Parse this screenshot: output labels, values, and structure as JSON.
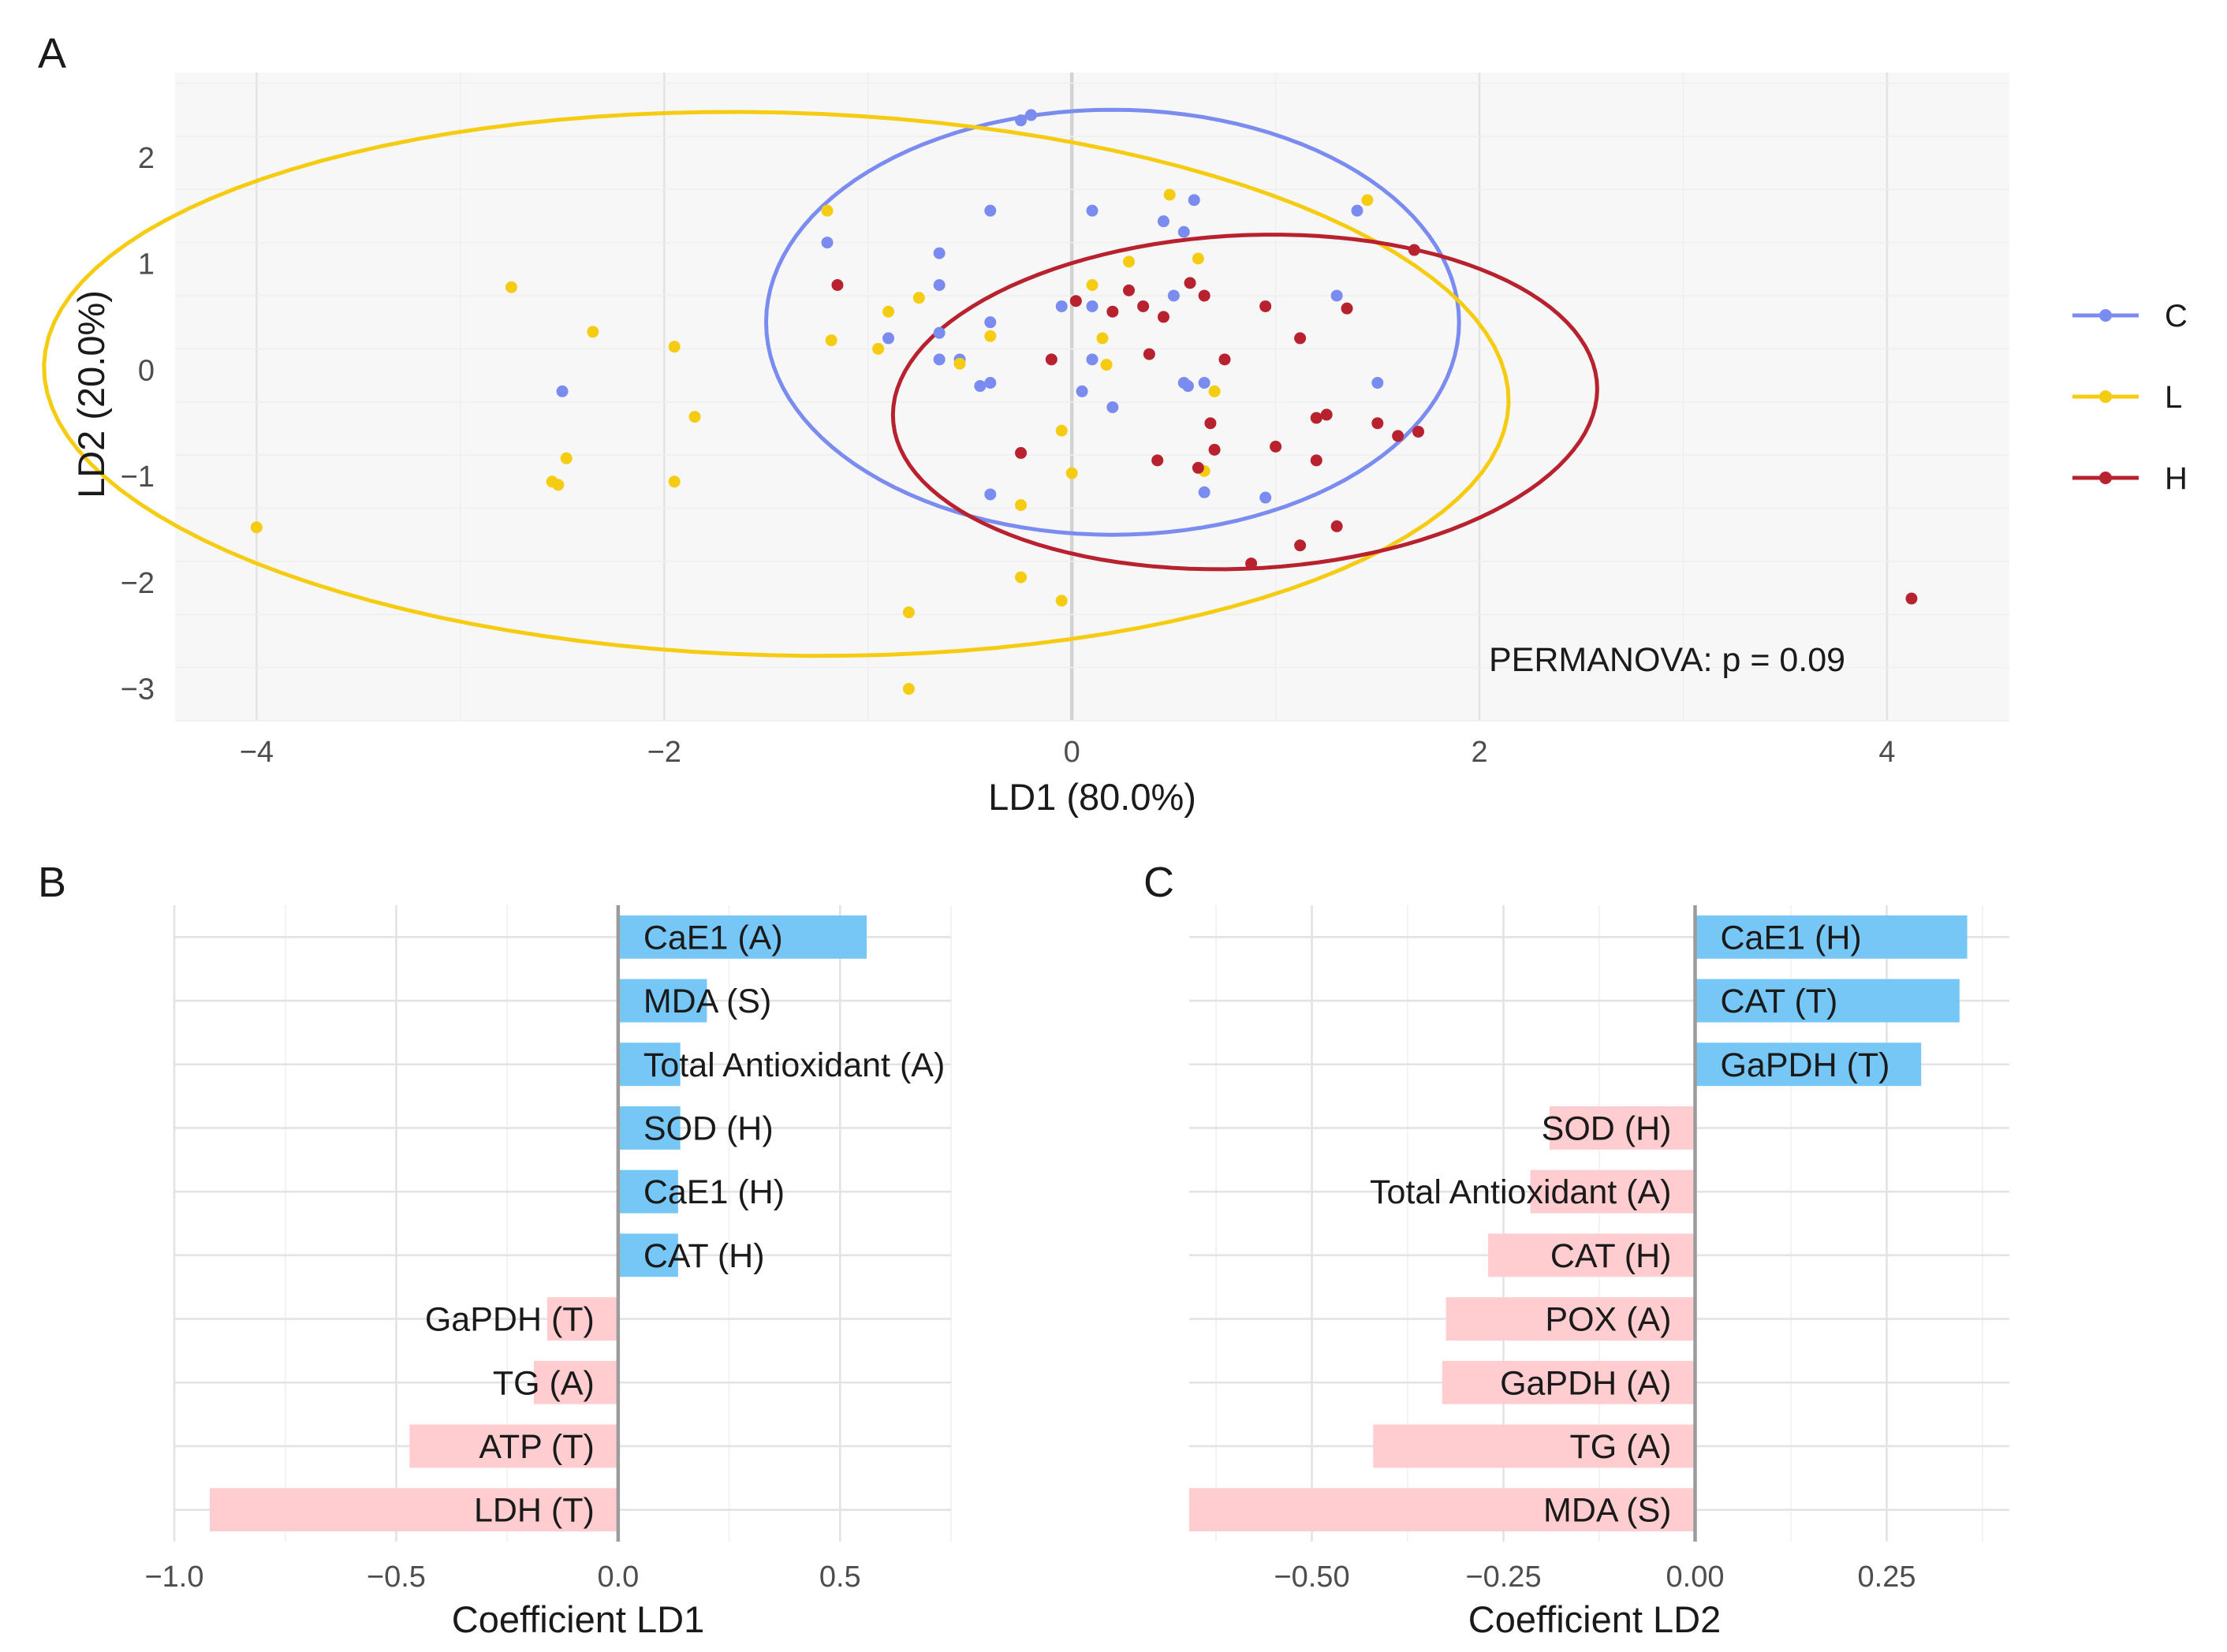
{
  "chart_data": [
    {
      "panel": "A",
      "type": "scatter",
      "xlabel": "LD1 (80.0%)",
      "ylabel": "LD2 (20.0%)",
      "xlim": [
        -4.4,
        4.6
      ],
      "ylim": [
        -3.3,
        2.8
      ],
      "xticks": [
        -4,
        -2,
        0,
        2,
        4
      ],
      "yticks": [
        -3,
        -2,
        -1,
        0,
        1,
        2
      ],
      "xtick_labels": [
        "−4",
        "−2",
        "0",
        "2",
        "4"
      ],
      "ytick_labels": [
        "−3",
        "−2",
        "−1",
        "0",
        "1",
        "2"
      ],
      "grid": true,
      "legend_position": "right",
      "annotation": "PERMANOVA: p = 0.09",
      "series": [
        {
          "name": "C",
          "color": "#7b8cf0",
          "ellipse": {
            "cx": 0.2,
            "cy": 0.45,
            "rx": 1.7,
            "ry": 2.0,
            "angle": 0
          },
          "points": [
            [
              -0.25,
              2.35
            ],
            [
              -0.2,
              2.4
            ],
            [
              0.1,
              1.5
            ],
            [
              0.45,
              1.4
            ],
            [
              0.55,
              1.3
            ],
            [
              0.6,
              1.6
            ],
            [
              -0.4,
              1.5
            ],
            [
              -1.2,
              1.2
            ],
            [
              -0.65,
              1.1
            ],
            [
              -0.65,
              0.8
            ],
            [
              -0.65,
              0.35
            ],
            [
              -0.65,
              0.1
            ],
            [
              -0.55,
              0.1
            ],
            [
              -0.45,
              -0.15
            ],
            [
              -0.4,
              -0.12
            ],
            [
              -0.4,
              0.45
            ],
            [
              -0.9,
              0.3
            ],
            [
              -0.05,
              0.6
            ],
            [
              0.1,
              0.6
            ],
            [
              0.1,
              0.1
            ],
            [
              0.05,
              -0.2
            ],
            [
              0.2,
              -0.35
            ],
            [
              0.5,
              0.7
            ],
            [
              0.55,
              -0.12
            ],
            [
              0.57,
              -0.15
            ],
            [
              0.65,
              -0.12
            ],
            [
              1.3,
              0.7
            ],
            [
              1.5,
              -0.12
            ],
            [
              1.4,
              1.5
            ],
            [
              0.65,
              -1.15
            ],
            [
              0.95,
              -1.2
            ],
            [
              -0.4,
              -1.17
            ],
            [
              -2.5,
              -0.2
            ]
          ]
        },
        {
          "name": "L",
          "color": "#f5cc12",
          "ellipse": {
            "cx": -1.45,
            "cy": -0.13,
            "rx": 3.6,
            "ry": 2.55,
            "angle": -5
          },
          "points": [
            [
              -4.0,
              -1.48
            ],
            [
              -2.75,
              0.78
            ],
            [
              -2.35,
              0.36
            ],
            [
              -2.55,
              -1.05
            ],
            [
              -2.52,
              -1.08
            ],
            [
              -2.48,
              -0.83
            ],
            [
              -1.95,
              0.22
            ],
            [
              -1.95,
              -1.05
            ],
            [
              -1.85,
              -0.44
            ],
            [
              -1.2,
              1.5
            ],
            [
              -1.18,
              0.28
            ],
            [
              -0.95,
              0.2
            ],
            [
              -0.9,
              0.55
            ],
            [
              -0.75,
              0.68
            ],
            [
              -0.55,
              0.06
            ],
            [
              -0.4,
              0.32
            ],
            [
              -0.25,
              -1.27
            ],
            [
              -0.25,
              -1.95
            ],
            [
              -0.8,
              -2.28
            ],
            [
              -0.8,
              -3.0
            ],
            [
              -0.05,
              -2.17
            ],
            [
              -0.05,
              -0.57
            ],
            [
              0.0,
              -0.97
            ],
            [
              0.1,
              0.8
            ],
            [
              0.15,
              0.3
            ],
            [
              0.17,
              0.05
            ],
            [
              0.28,
              1.02
            ],
            [
              0.48,
              1.65
            ],
            [
              0.62,
              1.05
            ],
            [
              0.7,
              -0.2
            ],
            [
              0.65,
              -0.95
            ],
            [
              1.45,
              1.6
            ]
          ]
        },
        {
          "name": "H",
          "color": "#b8222e",
          "ellipse": {
            "cx": 0.85,
            "cy": -0.3,
            "rx": 1.75,
            "ry": 1.55,
            "angle": 20
          },
          "points": [
            [
              -1.15,
              0.8
            ],
            [
              0.02,
              0.65
            ],
            [
              0.2,
              0.55
            ],
            [
              0.28,
              0.75
            ],
            [
              0.35,
              0.6
            ],
            [
              0.45,
              0.5
            ],
            [
              0.58,
              0.82
            ],
            [
              0.65,
              0.7
            ],
            [
              0.75,
              0.1
            ],
            [
              0.38,
              0.15
            ],
            [
              -0.1,
              0.1
            ],
            [
              0.62,
              -0.92
            ],
            [
              0.68,
              -0.5
            ],
            [
              0.7,
              -0.75
            ],
            [
              0.42,
              -0.85
            ],
            [
              0.95,
              0.6
            ],
            [
              1.0,
              -0.72
            ],
            [
              1.12,
              0.3
            ],
            [
              1.2,
              -0.45
            ],
            [
              1.25,
              -0.42
            ],
            [
              1.35,
              0.58
            ],
            [
              1.5,
              -0.5
            ],
            [
              1.6,
              -0.62
            ],
            [
              1.7,
              -0.58
            ],
            [
              1.68,
              1.13
            ],
            [
              1.2,
              -0.85
            ],
            [
              1.12,
              -1.65
            ],
            [
              1.3,
              -1.47
            ],
            [
              0.88,
              -1.82
            ],
            [
              -0.25,
              -0.78
            ],
            [
              4.12,
              -2.15
            ]
          ]
        }
      ]
    },
    {
      "panel": "B",
      "type": "bar",
      "orientation": "horizontal",
      "xlabel": "Coefficient LD1",
      "xlim": [
        -1.0,
        0.75
      ],
      "xticks": [
        -1.0,
        -0.5,
        0.0,
        0.5
      ],
      "xtick_labels": [
        "−1.0",
        "−0.5",
        "0.0",
        "0.5"
      ],
      "positive_color": "#76c7f5",
      "negative_color": "#ffcccf",
      "categories": [
        "CaE1 (A)",
        "MDA (S)",
        "Total Antioxidant (A)",
        "SOD (H)",
        "CaE1 (H)",
        "CAT (H)",
        "GaPDH (T)",
        "TG (A)",
        "ATP (T)",
        "LDH (T)"
      ],
      "values": [
        0.56,
        0.2,
        0.14,
        0.14,
        0.135,
        0.135,
        -0.16,
        -0.19,
        -0.47,
        -0.92
      ]
    },
    {
      "panel": "C",
      "type": "bar",
      "orientation": "horizontal",
      "xlabel": "Coefficient LD2",
      "xlim": [
        -0.66,
        0.41
      ],
      "xticks": [
        -0.5,
        -0.25,
        0.0,
        0.25
      ],
      "xtick_labels": [
        "−0.50",
        "−0.25",
        "0.00",
        "0.25"
      ],
      "positive_color": "#76c7f5",
      "negative_color": "#ffcccf",
      "categories": [
        "CaE1 (H)",
        "CAT (T)",
        "GaPDH (T)",
        "SOD (H)",
        "Total Antioxidant (A)",
        "CAT (H)",
        "POX (A)",
        "GaPDH (A)",
        "TG (A)",
        "MDA (S)"
      ],
      "values": [
        0.355,
        0.345,
        0.295,
        -0.19,
        -0.215,
        -0.27,
        -0.325,
        -0.33,
        -0.42,
        -0.66
      ]
    }
  ]
}
